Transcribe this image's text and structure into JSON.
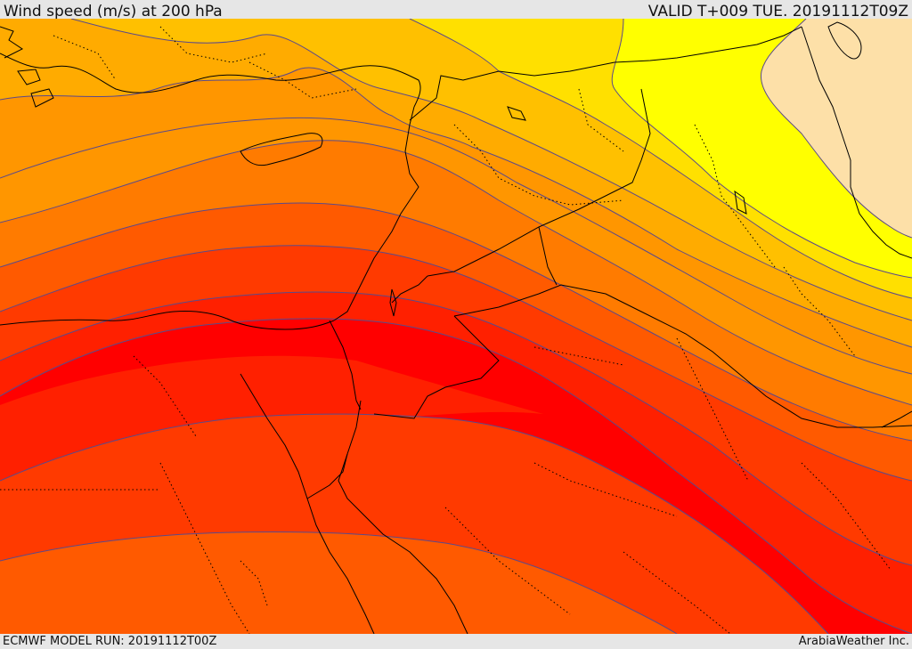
{
  "header": {
    "title": "Wind speed (m/s) at 200 hPa",
    "valid": "VALID T+009 TUE. 20191112T09Z"
  },
  "footer": {
    "model_run": "ECMWF MODEL RUN: 20191112T00Z",
    "credit": "ArabiaWeather Inc."
  },
  "colors": {
    "very_light": "#fde0a8",
    "yellow": "#ffff00",
    "yellow_orange": "#ffe000",
    "gold": "#ffc000",
    "light_orange": "#ffab00",
    "orange": "#ff9600",
    "dark_orange": "#ff7b00",
    "red_orange": "#ff5a00",
    "orange_red": "#ff3a00",
    "red": "#ff2000",
    "core_red": "#ff0000",
    "contour": "#5b4a8a",
    "coastline": "#000000",
    "borders": "#000000"
  }
}
